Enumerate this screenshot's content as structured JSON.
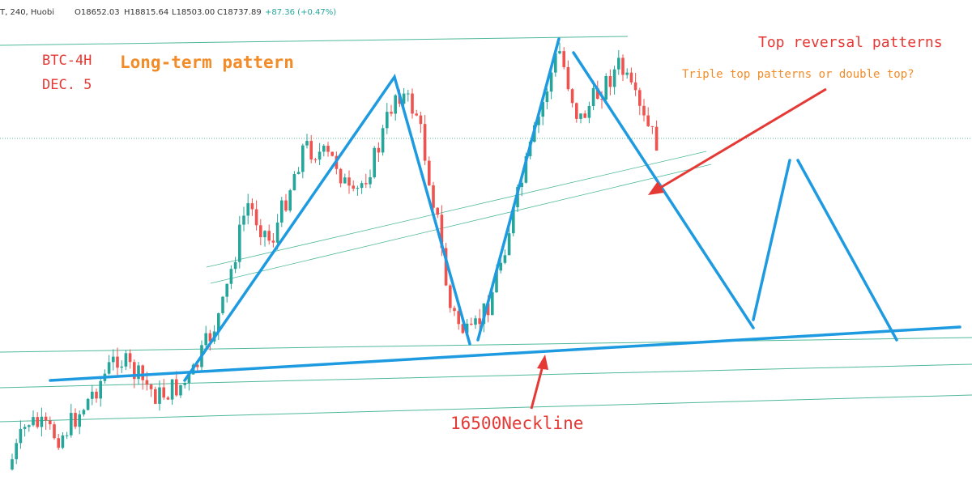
{
  "header": {
    "symbol": "T, 240, Huobi",
    "open": "O18652.03",
    "high": "H18815.64",
    "low": "L18503.00",
    "close": "C18737.89",
    "change": "+87.36 (+0.47%)"
  },
  "annotations": {
    "asset": "BTC-4H",
    "date": "DEC. 5",
    "pattern": "Long-term pattern",
    "headline": "Top reversal patterns",
    "question": "Triple top patterns or double top?",
    "neckline": "16500Neckline"
  }
}
